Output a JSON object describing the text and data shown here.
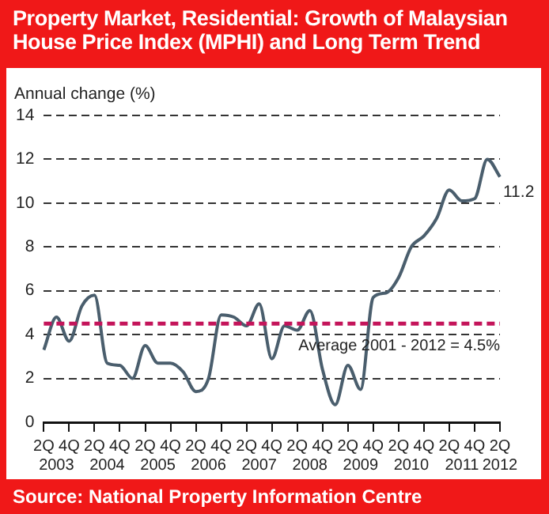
{
  "chart_data": {
    "type": "line",
    "title": "Property Market, Residential: Growth of Malaysian House Price Index (MPHI) and Long Term Trend",
    "ylabel": "Annual change (%)",
    "categories": [
      "2Q",
      "2003",
      "4Q",
      null,
      "2Q",
      "2004",
      "4Q",
      null,
      "2Q",
      "2005",
      "4Q",
      null,
      "2Q",
      "2006",
      "4Q",
      null,
      "2Q",
      "2007",
      "4Q",
      null,
      "2Q",
      "2008",
      "4Q",
      null,
      "2Q",
      "2009",
      "4Q",
      null,
      "2Q",
      "2010",
      "4Q",
      null,
      "2Q",
      "2011",
      "4Q",
      null,
      "2Q\n2012"
    ],
    "series": [
      {
        "color": "#4a5e6d",
        "values": [
          3.3,
          4.8,
          3.7,
          5.3,
          5.8,
          2.7,
          2.6,
          2.0,
          3.5,
          2.7,
          2.7,
          2.3,
          1.4,
          2.0,
          4.9,
          4.8,
          4.4,
          5.4,
          2.9,
          4.4,
          4.2,
          5.1,
          2.4,
          0.8,
          2.6,
          1.5,
          5.7,
          5.9,
          6.6,
          8.0,
          8.5,
          9.3,
          10.6,
          10.1,
          10.2,
          12.0,
          11.2
        ],
        "value_labels": [
          null,
          null,
          null,
          null,
          null,
          null,
          null,
          null,
          null,
          null,
          null,
          null,
          null,
          null,
          null,
          null,
          null,
          null,
          null,
          null,
          null,
          null,
          null,
          null,
          null,
          null,
          null,
          null,
          null,
          null,
          null,
          null,
          null,
          null,
          null,
          null,
          "11.2"
        ]
      }
    ],
    "ylim": [
      0,
      14
    ],
    "yticks": [
      0,
      2,
      4,
      6,
      8,
      10,
      12,
      14
    ],
    "grid": "y",
    "line_style": "solid",
    "marker": "none",
    "legend": false,
    "ref_lines": [
      {
        "axis": "y",
        "value": 4.5,
        "label": "Average 2001 - 2012 = 4.5%",
        "color": "#c4145a",
        "line_style": "dashed"
      }
    ],
    "annotations": [
      "Source: National Property Information Centre"
    ]
  }
}
